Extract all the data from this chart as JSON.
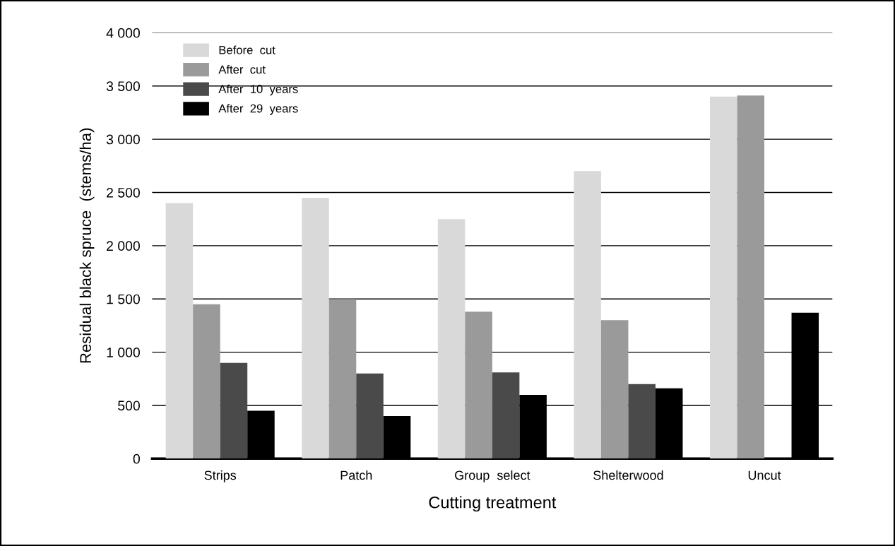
{
  "chart_data": {
    "type": "bar",
    "xlabel": "Cutting treatment",
    "ylabel": "Residual black spruce  (stems/ha)",
    "categories": [
      "Strips",
      "Patch",
      "Group  select",
      "Shelterwood",
      "Uncut"
    ],
    "series": [
      {
        "name": "Before  cut",
        "color": "#d9d9d9",
        "values": [
          2400,
          2450,
          2250,
          2700,
          3400
        ]
      },
      {
        "name": "After  cut",
        "color": "#9a9a9a",
        "values": [
          1450,
          1500,
          1380,
          1300,
          3410
        ]
      },
      {
        "name": "After  10  years",
        "color": "#4a4a4a",
        "values": [
          900,
          800,
          810,
          700,
          null
        ]
      },
      {
        "name": "After  29  years",
        "color": "#000000",
        "values": [
          450,
          400,
          600,
          660,
          1370
        ]
      }
    ],
    "ylim": [
      0,
      4000
    ],
    "yticks": [
      {
        "value": 0,
        "label": "0"
      },
      {
        "value": 500,
        "label": "500"
      },
      {
        "value": 1000,
        "label": "1 000"
      },
      {
        "value": 1500,
        "label": "1 500"
      },
      {
        "value": 2000,
        "label": "2 000"
      },
      {
        "value": 2500,
        "label": "2 500"
      },
      {
        "value": 3000,
        "label": "3 000"
      },
      {
        "value": 3500,
        "label": "3 500"
      },
      {
        "value": 4000,
        "label": "4 000"
      }
    ],
    "grid": "y",
    "legend": "top left"
  }
}
